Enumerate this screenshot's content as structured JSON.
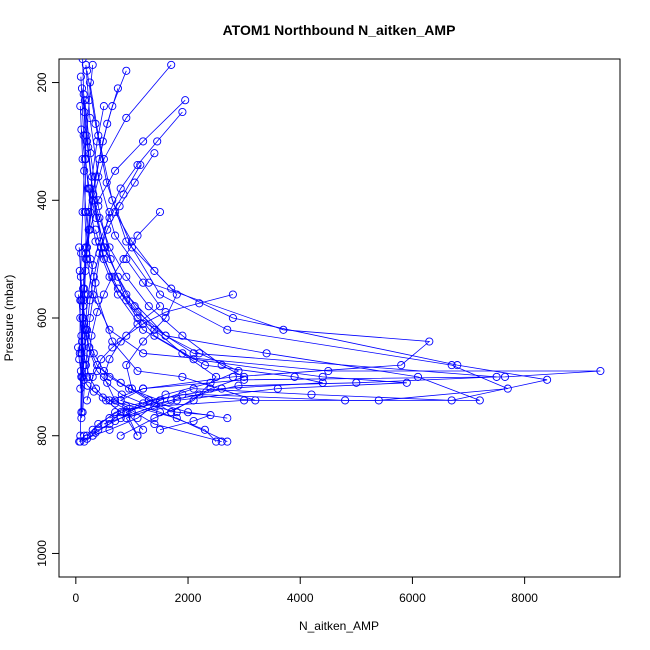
{
  "chart_data": {
    "type": "line",
    "title": "ATOM1 Northbound N_aitken_AMP",
    "xlabel": "N_aitken_AMP",
    "ylabel": "Pressure (mbar)",
    "xlim": [
      -300,
      9700
    ],
    "ylim": [
      1040,
      160
    ],
    "y_reversed": true,
    "xticks": [
      0,
      2000,
      4000,
      6000,
      8000
    ],
    "yticks": [
      200,
      400,
      600,
      800,
      1000
    ],
    "grid": false,
    "legend": "none",
    "color": "#0000ff",
    "series": [
      {
        "x": [
          120,
          150,
          180,
          160,
          200,
          300,
          600,
          1200,
          4500,
          9350,
          7650,
          3000,
          1200,
          800,
          1500,
          2300,
          2500
        ],
        "y": [
          160,
          250,
          330,
          420,
          500,
          560,
          620,
          660,
          690,
          690,
          700,
          705,
          720,
          740,
          760,
          790,
          810
        ]
      },
      {
        "x": [
          180,
          250,
          400,
          700,
          1300,
          3700,
          6300,
          5800,
          2800,
          1200,
          600,
          1800,
          2700
        ],
        "y": [
          170,
          260,
          360,
          460,
          540,
          620,
          640,
          680,
          700,
          720,
          740,
          770,
          810
        ]
      },
      {
        "x": [
          200,
          350,
          550,
          900,
          1700,
          2800,
          6800,
          8400,
          6700,
          4200,
          2100,
          900,
          1100
        ],
        "y": [
          180,
          270,
          370,
          470,
          550,
          600,
          680,
          705,
          740,
          730,
          720,
          760,
          800
        ]
      },
      {
        "x": [
          90,
          140,
          220,
          350,
          600,
          1100,
          2100,
          7500,
          5000,
          2900,
          1700,
          800
        ],
        "y": [
          190,
          290,
          380,
          470,
          530,
          600,
          660,
          700,
          710,
          715,
          740,
          770
        ]
      },
      {
        "x": [
          250,
          400,
          650,
          1000,
          1500,
          2700,
          6700,
          7700,
          5400,
          3000,
          1400,
          500
        ],
        "y": [
          200,
          290,
          400,
          480,
          560,
          620,
          680,
          720,
          740,
          740,
          750,
          780
        ]
      },
      {
        "x": [
          110,
          200,
          300,
          500,
          900,
          1600,
          3400,
          6100,
          7200,
          4800,
          2200,
          700,
          300
        ],
        "y": [
          210,
          300,
          390,
          480,
          560,
          630,
          660,
          700,
          740,
          740,
          730,
          760,
          790
        ]
      },
      {
        "x": [
          140,
          220,
          320,
          480,
          750,
          1200,
          2100,
          4400,
          5900,
          3600,
          1800,
          900,
          1100
        ],
        "y": [
          220,
          310,
          400,
          490,
          560,
          620,
          670,
          700,
          710,
          720,
          740,
          770,
          800
        ]
      },
      {
        "x": [
          160,
          260,
          400,
          620,
          900,
          1400,
          2300,
          3900,
          4400,
          2600,
          1300,
          600
        ],
        "y": [
          230,
          320,
          410,
          500,
          570,
          630,
          680,
          700,
          710,
          720,
          740,
          770
        ]
      },
      {
        "x": [
          80,
          120,
          180,
          260,
          400,
          650,
          1100,
          1900,
          3200,
          1900,
          900,
          400,
          200
        ],
        "y": [
          240,
          330,
          420,
          500,
          570,
          640,
          690,
          700,
          740,
          730,
          750,
          780,
          800
        ]
      },
      {
        "x": [
          1950,
          1200,
          700,
          400,
          250,
          180,
          150,
          120,
          100,
          80
        ],
        "y": [
          230,
          300,
          350,
          400,
          450,
          500,
          550,
          600,
          700,
          800
        ]
      },
      {
        "x": [
          1700,
          900,
          500,
          300,
          200,
          150,
          120,
          100
        ],
        "y": [
          170,
          260,
          330,
          400,
          480,
          560,
          650,
          760
        ]
      },
      {
        "x": [
          1900,
          1450,
          1100,
          800,
          600,
          450,
          350,
          250,
          180,
          120
        ],
        "y": [
          250,
          300,
          340,
          380,
          420,
          480,
          540,
          600,
          680,
          760
        ]
      },
      {
        "x": [
          1400,
          1050,
          780,
          560,
          420,
          320,
          250,
          190,
          140,
          100
        ],
        "y": [
          320,
          370,
          410,
          450,
          490,
          530,
          570,
          620,
          680,
          770
        ]
      },
      {
        "x": [
          1500,
          1100,
          850,
          650,
          500,
          380,
          280,
          200
        ],
        "y": [
          420,
          460,
          500,
          530,
          560,
          590,
          630,
          700
        ]
      },
      {
        "x": [
          2800,
          2200,
          1600,
          1200,
          900,
          650,
          450,
          300,
          200
        ],
        "y": [
          560,
          575,
          590,
          610,
          630,
          650,
          670,
          700,
          740
        ]
      },
      {
        "x": [
          1150,
          850,
          600,
          420,
          300,
          220,
          160,
          120
        ],
        "y": [
          340,
          390,
          430,
          470,
          510,
          560,
          620,
          700
        ]
      },
      {
        "x": [
          750,
          560,
          420,
          310,
          230,
          170,
          130,
          100
        ],
        "y": [
          210,
          270,
          330,
          390,
          450,
          520,
          600,
          700
        ]
      },
      {
        "x": [
          900,
          650,
          480,
          350,
          250,
          180,
          140,
          100
        ],
        "y": [
          180,
          240,
          300,
          360,
          420,
          490,
          570,
          660
        ]
      },
      {
        "x": [
          500,
          380,
          290,
          220,
          170,
          130,
          100,
          80
        ],
        "y": [
          240,
          300,
          360,
          420,
          480,
          550,
          630,
          720
        ]
      },
      {
        "x": [
          300,
          240,
          190,
          150,
          120,
          95,
          80,
          70
        ],
        "y": [
          170,
          230,
          290,
          350,
          420,
          490,
          570,
          660
        ]
      },
      {
        "x": [
          700,
          1000,
          1400,
          1800,
          1600,
          1200,
          900,
          1000,
          1700
        ],
        "y": [
          420,
          470,
          520,
          560,
          600,
          640,
          680,
          720,
          760
        ]
      },
      {
        "x": [
          260,
          420,
          600,
          900,
          1300,
          1900,
          2600,
          3000,
          2400,
          1700
        ],
        "y": [
          380,
          430,
          480,
          530,
          580,
          630,
          680,
          700,
          720,
          760
        ]
      },
      {
        "x": [
          900,
          1200,
          1500,
          1100,
          800,
          600,
          500,
          700,
          1400,
          2600
        ],
        "y": [
          500,
          540,
          580,
          610,
          640,
          670,
          700,
          740,
          780,
          810
        ]
      },
      {
        "x": [
          350,
          500,
          750,
          1100,
          1600,
          2200,
          2900,
          2400,
          1600,
          900,
          1200
        ],
        "y": [
          450,
          500,
          550,
          590,
          630,
          660,
          690,
          710,
          730,
          760,
          790
        ]
      },
      {
        "x": [
          60,
          90,
          130,
          200,
          320,
          500,
          800,
          1300,
          2000,
          2700
        ],
        "y": [
          480,
          530,
          580,
          620,
          660,
          690,
          710,
          740,
          760,
          770
        ]
      },
      {
        "x": [
          70,
          100,
          150,
          240,
          380,
          600,
          950,
          1500,
          1100,
          600,
          300,
          150
        ],
        "y": [
          520,
          570,
          610,
          650,
          680,
          700,
          720,
          740,
          770,
          790,
          800,
          810
        ]
      },
      {
        "x": [
          50,
          80,
          110,
          160,
          240,
          360,
          540,
          800,
          600,
          350,
          200,
          80
        ],
        "y": [
          560,
          600,
          640,
          670,
          700,
          720,
          740,
          760,
          780,
          795,
          805,
          810
        ]
      },
      {
        "x": [
          120,
          180,
          260,
          380,
          560,
          820,
          1200,
          1800,
          2400,
          2100,
          1500
        ],
        "y": [
          600,
          630,
          660,
          690,
          710,
          730,
          745,
          760,
          765,
          775,
          790
        ]
      },
      {
        "x": [
          40,
          60,
          90,
          140,
          210,
          320,
          480,
          700,
          1000,
          700,
          400,
          150,
          60
        ],
        "y": [
          650,
          670,
          690,
          705,
          715,
          725,
          735,
          745,
          760,
          775,
          790,
          800,
          810
        ]
      },
      {
        "x": [
          100,
          160,
          240,
          360,
          520,
          750,
          1050,
          1400,
          1900,
          2500,
          2100,
          1400,
          800
        ],
        "y": [
          280,
          330,
          380,
          430,
          480,
          530,
          580,
          620,
          660,
          700,
          740,
          770,
          800
        ]
      }
    ]
  }
}
